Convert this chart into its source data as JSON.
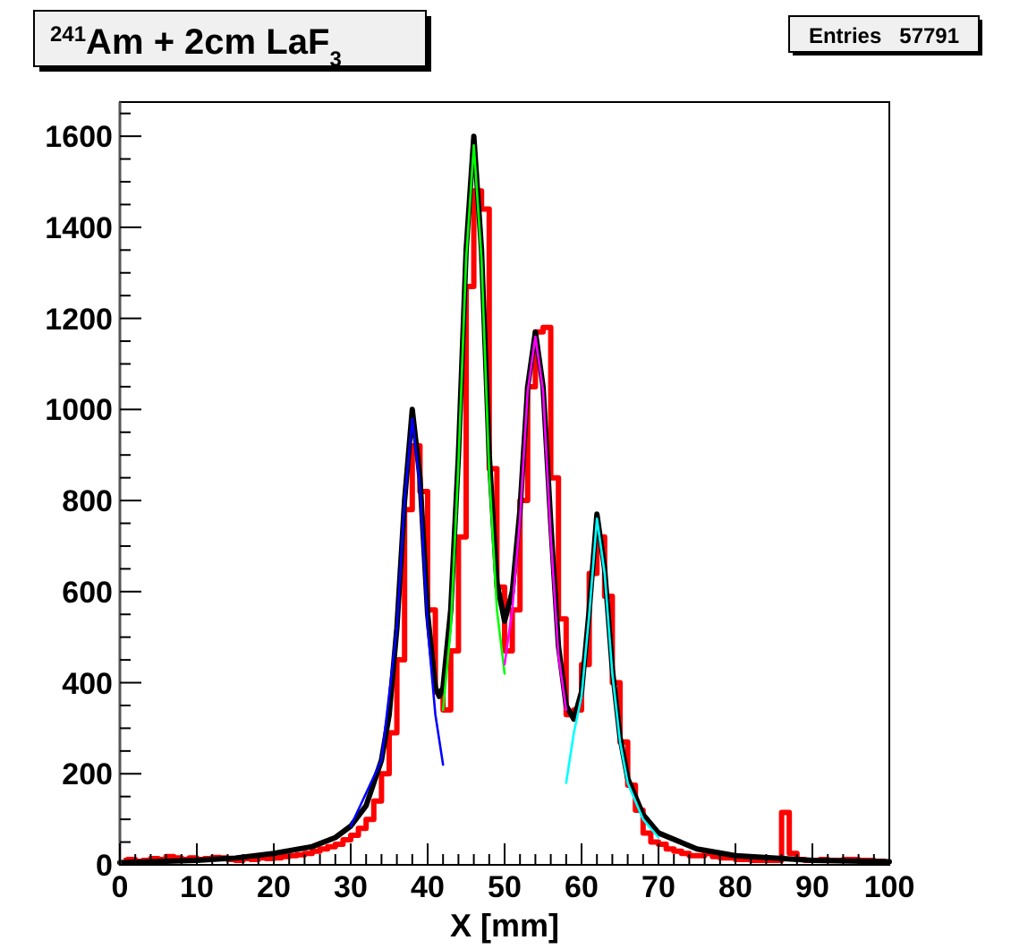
{
  "chart_data": {
    "type": "step",
    "title": "$^{241}$Am + 2cm LaF$_{3}$",
    "xlabel": "X [mm]",
    "annotations": [
      "Entries   57791"
    ],
    "xlim": [
      0,
      100
    ],
    "xticks": [
      0,
      10,
      20,
      30,
      40,
      50,
      60,
      70,
      80,
      90,
      100
    ],
    "ylim": [
      0,
      1675
    ],
    "yticks": [
      0,
      200,
      400,
      600,
      800,
      1000,
      1200,
      1400,
      1600
    ],
    "grid": false,
    "series": [
      {
        "color": "#ff0000",
        "x": [
          0.5,
          1.5,
          2.5,
          3.5,
          4.5,
          5.5,
          6.5,
          7.5,
          8.5,
          9.5,
          10.5,
          11.5,
          12.5,
          13.5,
          14.5,
          15.5,
          16.5,
          17.5,
          18.5,
          19.5,
          20.5,
          21.5,
          22.5,
          23.5,
          24.5,
          25.5,
          26.5,
          27.5,
          28.5,
          29.5,
          30.5,
          31.5,
          32.5,
          33.5,
          34.5,
          35.5,
          36.5,
          37.5,
          38.5,
          39.5,
          40.5,
          41.5,
          42.5,
          43.5,
          44.5,
          45.5,
          46.5,
          47.5,
          48.5,
          49.5,
          50.5,
          51.5,
          52.5,
          53.5,
          54.5,
          55.5,
          56.5,
          57.5,
          58.5,
          59.5,
          60.5,
          61.5,
          62.5,
          63.5,
          64.5,
          65.5,
          66.5,
          67.5,
          68.5,
          69.5,
          70.5,
          71.5,
          72.5,
          73.5,
          74.5,
          75.5,
          76.5,
          77.5,
          78.5,
          79.5,
          80.5,
          81.5,
          82.5,
          83.5,
          84.5,
          85.5,
          86.5,
          87.5,
          88.5,
          89.5,
          90.5,
          91.5,
          92.5,
          93.5,
          94.5,
          95.5,
          96.5,
          97.5,
          98.5,
          99.5
        ],
        "values": [
          10,
          12,
          8,
          10,
          14,
          12,
          18,
          15,
          12,
          15,
          12,
          14,
          16,
          15,
          12,
          10,
          14,
          12,
          15,
          14,
          15,
          18,
          20,
          22,
          25,
          30,
          35,
          40,
          45,
          55,
          65,
          80,
          100,
          140,
          200,
          290,
          450,
          780,
          920,
          820,
          560,
          380,
          340,
          470,
          720,
          1270,
          1480,
          1440,
          870,
          610,
          470,
          560,
          800,
          1050,
          1170,
          1180,
          850,
          540,
          330,
          340,
          440,
          640,
          720,
          590,
          400,
          270,
          175,
          120,
          70,
          50,
          45,
          35,
          30,
          25,
          20,
          20,
          25,
          18,
          15,
          15,
          12,
          12,
          10,
          10,
          10,
          10,
          115,
          25,
          12,
          10,
          10,
          12,
          10,
          10,
          12,
          12,
          10,
          10,
          8,
          8
        ]
      },
      {
        "type": "line",
        "color": "#000000",
        "x": [
          0,
          10,
          15,
          20,
          25,
          28,
          30,
          32,
          34,
          35,
          36,
          37,
          38,
          39,
          40,
          41,
          41.5,
          42,
          43,
          44,
          45,
          46,
          47,
          48,
          49,
          50,
          51,
          52,
          53,
          54,
          55,
          56,
          57,
          58,
          59,
          60,
          61,
          62,
          63,
          64,
          65,
          66,
          68,
          70,
          75,
          80,
          90,
          100
        ],
        "values": [
          5,
          10,
          15,
          25,
          40,
          60,
          85,
          130,
          230,
          330,
          520,
          800,
          1000,
          850,
          550,
          390,
          370,
          390,
          560,
          900,
          1350,
          1600,
          1350,
          900,
          620,
          535,
          600,
          780,
          1050,
          1170,
          1050,
          750,
          480,
          350,
          320,
          380,
          560,
          770,
          650,
          430,
          280,
          190,
          110,
          70,
          35,
          20,
          10,
          7
        ]
      },
      {
        "type": "line",
        "color": "#0000ff",
        "x": [
          30,
          34,
          36,
          37,
          38,
          39,
          40,
          41,
          42
        ],
        "values": [
          85,
          230,
          520,
          800,
          980,
          830,
          520,
          330,
          220
        ]
      },
      {
        "type": "line",
        "color": "#00ff00",
        "x": [
          42,
          43,
          44,
          45,
          46,
          47,
          48,
          49,
          50
        ],
        "values": [
          340,
          520,
          880,
          1330,
          1580,
          1330,
          860,
          560,
          420
        ]
      },
      {
        "type": "line",
        "color": "#ff00ff",
        "x": [
          50,
          51,
          52,
          53,
          54,
          55,
          56,
          57,
          58
        ],
        "values": [
          440,
          560,
          760,
          1040,
          1160,
          1040,
          720,
          460,
          340
        ]
      },
      {
        "type": "line",
        "color": "#00ffff",
        "x": [
          58,
          59,
          60,
          61,
          62,
          63,
          64,
          65,
          66,
          68,
          70
        ],
        "values": [
          180,
          290,
          370,
          550,
          760,
          640,
          420,
          270,
          180,
          100,
          60
        ]
      }
    ]
  }
}
